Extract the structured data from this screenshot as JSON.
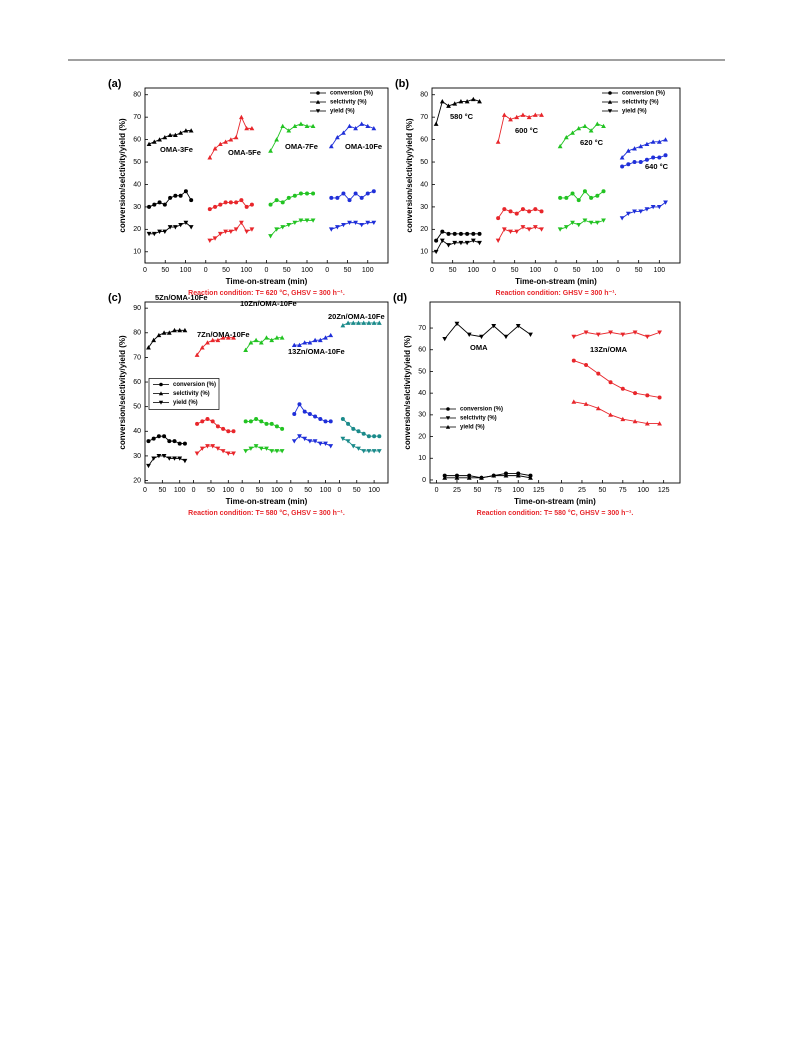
{
  "chart_data": [
    {
      "type": "line",
      "label": "(a)",
      "ylabel": "conversion/selctivity/yield (%)",
      "xlabel": "Time-on-stream (min)",
      "caption": "Reaction condition: T= 620 °C, GHSV = 300 h⁻¹.",
      "ylim": [
        5,
        83
      ],
      "yticks": [
        10,
        20,
        30,
        40,
        50,
        60,
        70,
        80
      ],
      "legend": "upper right",
      "legend_frame": false,
      "series_names": [
        "conversion (%)",
        "selctivity (%)",
        "yield (%)"
      ],
      "markers": [
        "circle",
        "triangle-up",
        "triangle-down"
      ],
      "segments": [
        {
          "label": "OMA-3Fe",
          "color": "#000000",
          "xlim": [
            0,
            150
          ],
          "xticks": [
            0,
            50,
            100
          ],
          "x": [
            10,
            23,
            36,
            49,
            62,
            75,
            88,
            101,
            114
          ],
          "values": [
            [
              30,
              31,
              32,
              31,
              34,
              35,
              35,
              37,
              33
            ],
            [
              58,
              59,
              60,
              61,
              62,
              62,
              63,
              64,
              64
            ],
            [
              18,
              18,
              19,
              19,
              21,
              21,
              22,
              23,
              21
            ]
          ]
        },
        {
          "label": "OMA-5Fe",
          "color": "#e8262b",
          "xlim": [
            0,
            150
          ],
          "xticks": [
            0,
            50,
            100
          ],
          "x": [
            10,
            23,
            36,
            49,
            62,
            75,
            88,
            101,
            114
          ],
          "values": [
            [
              29,
              30,
              31,
              32,
              32,
              32,
              33,
              30,
              31
            ],
            [
              52,
              56,
              58,
              59,
              60,
              61,
              70,
              65,
              65
            ],
            [
              15,
              16,
              18,
              19,
              19,
              20,
              23,
              19,
              20
            ]
          ]
        },
        {
          "label": "OMA-7Fe",
          "color": "#22c322",
          "xlim": [
            0,
            150
          ],
          "xticks": [
            0,
            50,
            100
          ],
          "x": [
            10,
            25,
            40,
            55,
            70,
            85,
            100,
            115
          ],
          "values": [
            [
              31,
              33,
              32,
              34,
              35,
              36,
              36,
              36
            ],
            [
              55,
              60,
              66,
              64,
              66,
              67,
              66,
              66
            ],
            [
              17,
              20,
              21,
              22,
              23,
              24,
              24,
              24
            ]
          ]
        },
        {
          "label": "OMA-10Fe",
          "color": "#1f2fd9",
          "xlim": [
            0,
            150
          ],
          "xticks": [
            0,
            50,
            100
          ],
          "x": [
            10,
            25,
            40,
            55,
            70,
            85,
            100,
            115
          ],
          "values": [
            [
              34,
              34,
              36,
              33,
              36,
              34,
              36,
              37
            ],
            [
              57,
              61,
              63,
              66,
              65,
              67,
              66,
              65
            ],
            [
              20,
              21,
              22,
              23,
              23,
              22,
              23,
              23
            ]
          ]
        }
      ]
    },
    {
      "type": "line",
      "label": "(b)",
      "ylabel": "conversion/selctivity/yield (%)",
      "xlabel": "Time-on-stream (min)",
      "caption": "Reaction condition: GHSV = 300 h⁻¹.",
      "ylim": [
        5,
        83
      ],
      "yticks": [
        10,
        20,
        30,
        40,
        50,
        60,
        70,
        80
      ],
      "legend": "upper right",
      "legend_frame": false,
      "series_names": [
        "conversion (%)",
        "selctivity (%)",
        "yield (%)"
      ],
      "markers": [
        "circle",
        "triangle-up",
        "triangle-down"
      ],
      "segments": [
        {
          "label": "580 °C",
          "color": "#000000",
          "xlim": [
            0,
            150
          ],
          "xticks": [
            0,
            50,
            100
          ],
          "x": [
            10,
            25,
            40,
            55,
            70,
            85,
            100,
            115
          ],
          "values": [
            [
              15,
              19,
              18,
              18,
              18,
              18,
              18,
              18
            ],
            [
              67,
              77,
              75,
              76,
              77,
              77,
              78,
              77
            ],
            [
              10,
              15,
              13,
              14,
              14,
              14,
              15,
              14
            ]
          ]
        },
        {
          "label": "600 °C",
          "color": "#e8262b",
          "xlim": [
            0,
            150
          ],
          "xticks": [
            0,
            50,
            100
          ],
          "x": [
            10,
            25,
            40,
            55,
            70,
            85,
            100,
            115
          ],
          "values": [
            [
              25,
              29,
              28,
              27,
              29,
              28,
              29,
              28
            ],
            [
              59,
              71,
              69,
              70,
              71,
              70,
              71,
              71
            ],
            [
              15,
              20,
              19,
              19,
              21,
              20,
              21,
              20
            ]
          ]
        },
        {
          "label": "620 °C",
          "color": "#22c322",
          "xlim": [
            0,
            150
          ],
          "xticks": [
            0,
            50,
            100
          ],
          "x": [
            10,
            25,
            40,
            55,
            70,
            85,
            100,
            115
          ],
          "values": [
            [
              34,
              34,
              36,
              33,
              37,
              34,
              35,
              37
            ],
            [
              57,
              61,
              63,
              65,
              66,
              64,
              67,
              66
            ],
            [
              20,
              21,
              23,
              22,
              24,
              23,
              23,
              24
            ]
          ]
        },
        {
          "label": "640 °C",
          "color": "#1f2fd9",
          "xlim": [
            0,
            150
          ],
          "xticks": [
            0,
            50,
            100
          ],
          "x": [
            10,
            25,
            40,
            55,
            70,
            85,
            100,
            115
          ],
          "values": [
            [
              48,
              49,
              50,
              50,
              51,
              52,
              52,
              53
            ],
            [
              52,
              55,
              56,
              57,
              58,
              59,
              59,
              60
            ],
            [
              25,
              27,
              28,
              28,
              29,
              30,
              30,
              32
            ]
          ]
        }
      ]
    },
    {
      "type": "line",
      "label": "(c)",
      "ylabel": "conversion/selctivity/yield (%)",
      "xlabel": "Time-on-stream (min)",
      "caption": "Reaction condition: T= 580 °C, GHSV = 300 h⁻¹.",
      "ylim": [
        19,
        92.5
      ],
      "yticks": [
        20,
        30,
        40,
        50,
        60,
        70,
        80,
        90
      ],
      "legend": "center left",
      "legend_frame": true,
      "series_names": [
        "conversion (%)",
        "selctivity (%)",
        "yield (%)"
      ],
      "markers": [
        "circle",
        "triangle-up",
        "triangle-down"
      ],
      "segments": [
        {
          "label": "5Zn/OMA-10Fe",
          "color": "#000000",
          "xlim": [
            0,
            140
          ],
          "xticks": [
            0,
            50,
            100
          ],
          "x": [
            10,
            25,
            40,
            55,
            70,
            85,
            100,
            115
          ],
          "values": [
            [
              36,
              37,
              38,
              38,
              36,
              36,
              35,
              35
            ],
            [
              74,
              77,
              79,
              80,
              80,
              81,
              81,
              81
            ],
            [
              26,
              29,
              30,
              30,
              29,
              29,
              29,
              28
            ]
          ]
        },
        {
          "label": "7Zn/OMA-10Fe",
          "color": "#e8262b",
          "xlim": [
            0,
            140
          ],
          "xticks": [
            0,
            50,
            100
          ],
          "x": [
            10,
            25,
            40,
            55,
            70,
            85,
            100,
            115
          ],
          "values": [
            [
              43,
              44,
              45,
              44,
              42,
              41,
              40,
              40
            ],
            [
              71,
              74,
              76,
              77,
              77,
              78,
              78,
              78
            ],
            [
              31,
              33,
              34,
              34,
              33,
              32,
              31,
              31
            ]
          ]
        },
        {
          "label": "10Zn/OMA-10Fe",
          "color": "#22c322",
          "xlim": [
            0,
            140
          ],
          "xticks": [
            0,
            50,
            100
          ],
          "x": [
            10,
            25,
            40,
            55,
            70,
            85,
            100,
            115
          ],
          "values": [
            [
              44,
              44,
              45,
              44,
              43,
              43,
              42,
              41
            ],
            [
              73,
              76,
              77,
              76,
              78,
              77,
              78,
              78
            ],
            [
              32,
              33,
              34,
              33,
              33,
              32,
              32,
              32
            ]
          ]
        },
        {
          "label": "13Zn/OMA-10Fe",
          "color": "#1f2fd9",
          "xlim": [
            0,
            140
          ],
          "xticks": [
            0,
            50,
            100
          ],
          "x": [
            10,
            25,
            40,
            55,
            70,
            85,
            100,
            115
          ],
          "values": [
            [
              47,
              51,
              48,
              47,
              46,
              45,
              44,
              44
            ],
            [
              75,
              75,
              76,
              76,
              77,
              77,
              78,
              79
            ],
            [
              36,
              38,
              37,
              36,
              36,
              35,
              35,
              34
            ]
          ]
        },
        {
          "label": "20Zn/OMA-10Fe",
          "color": "#1a8a8a",
          "xlim": [
            0,
            140
          ],
          "xticks": [
            0,
            50,
            100
          ],
          "x": [
            10,
            25,
            40,
            55,
            70,
            85,
            100,
            115
          ],
          "values": [
            [
              45,
              43,
              41,
              40,
              39,
              38,
              38,
              38
            ],
            [
              83,
              84,
              84,
              84,
              84,
              84,
              84,
              84
            ],
            [
              37,
              36,
              34,
              33,
              32,
              32,
              32,
              32
            ]
          ]
        }
      ]
    },
    {
      "type": "line",
      "label": "(d)",
      "ylabel": "conversion/selctivity/yield (%)",
      "xlabel": "Time-on-stream (min)",
      "caption": "Reaction condition: T= 580 °C, GHSV = 300 h⁻¹.",
      "ylim": [
        -1.4,
        82
      ],
      "yticks": [
        0,
        10,
        20,
        30,
        40,
        50,
        60,
        70
      ],
      "legend": "lower left",
      "legend_frame": false,
      "series_names": [
        "conversion (%)",
        "selctivity (%)",
        "yield (%)"
      ],
      "markers": [
        "circle",
        "triangle-down",
        "triangle-up"
      ],
      "segments": [
        {
          "label": "OMA",
          "color": "#000000",
          "xlim": [
            -8,
            145
          ],
          "xticks": [
            0,
            25,
            50,
            75,
            100,
            125
          ],
          "x": [
            10,
            25,
            40,
            55,
            70,
            85,
            100,
            115
          ],
          "values": [
            [
              2,
              2,
              2,
              1,
              2,
              3,
              3,
              2
            ],
            [
              65,
              72,
              67,
              66,
              71,
              66,
              71,
              67
            ],
            [
              1,
              1,
              1,
              1,
              2,
              2,
              2,
              1
            ]
          ]
        },
        {
          "label": "13Zn/OMA",
          "color": "#e8262b",
          "xlim": [
            -8,
            145
          ],
          "xticks": [
            0,
            25,
            50,
            75,
            100,
            125
          ],
          "x": [
            15,
            30,
            45,
            60,
            75,
            90,
            105,
            120
          ],
          "values": [
            [
              55,
              53,
              49,
              45,
              42,
              40,
              39,
              38
            ],
            [
              66,
              68,
              67,
              68,
              67,
              68,
              66,
              68
            ],
            [
              36,
              35,
              33,
              30,
              28,
              27,
              26,
              26
            ]
          ]
        }
      ]
    }
  ]
}
